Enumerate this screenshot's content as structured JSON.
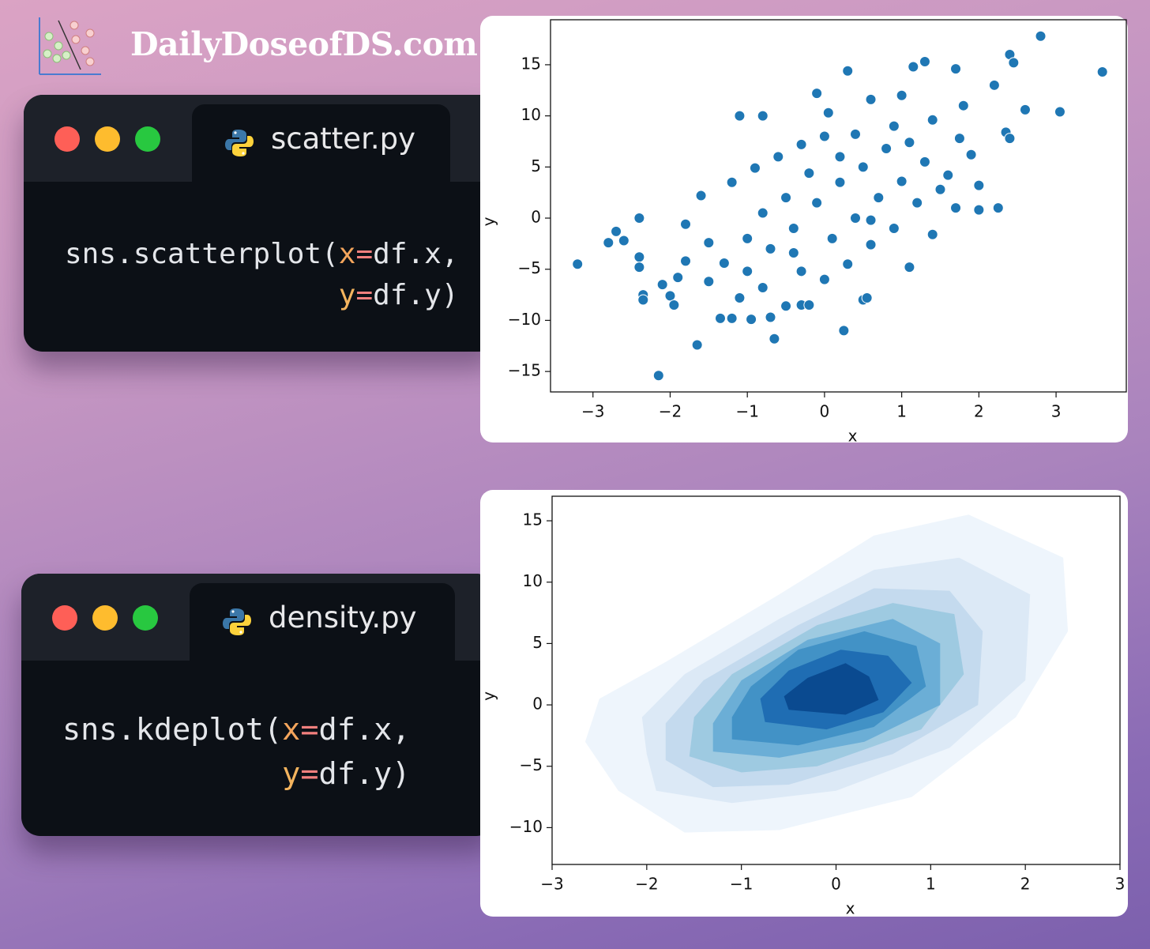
{
  "brand": "DailyDoseofDS.com",
  "windows": [
    {
      "filename": "scatter.py",
      "lines": [
        [
          {
            "text": "sns.scatterplot(",
            "color": "#e4e6ea"
          },
          {
            "text": "x",
            "color": "#f4a55c"
          },
          {
            "text": "=",
            "color": "#f3807e"
          },
          {
            "text": "df.x,",
            "color": "#e4e6ea"
          }
        ],
        [
          {
            "text": "y",
            "color": "#f4b45e"
          },
          {
            "text": "=",
            "color": "#f3807e"
          },
          {
            "text": "df.y)",
            "color": "#e4e6ea"
          }
        ]
      ]
    },
    {
      "filename": "density.py",
      "lines": [
        [
          {
            "text": "sns.kdeplot(",
            "color": "#e4e6ea"
          },
          {
            "text": "x",
            "color": "#f4a55c"
          },
          {
            "text": "=",
            "color": "#f3807e"
          },
          {
            "text": "df.x,",
            "color": "#e4e6ea"
          }
        ],
        [
          {
            "text": "y",
            "color": "#f4b45e"
          },
          {
            "text": "=",
            "color": "#f3807e"
          },
          {
            "text": "df.y)",
            "color": "#e4e6ea"
          }
        ]
      ]
    }
  ],
  "chart_data": [
    {
      "type": "scatter",
      "xlabel": "x",
      "ylabel": "y",
      "color": "#1f77b4",
      "xlim": [
        -3.55,
        3.91
      ],
      "ylim": [
        -17,
        19.4
      ],
      "xticks": [
        {
          "value": -3,
          "label": "−3"
        },
        {
          "value": -2,
          "label": "−2"
        },
        {
          "value": -1,
          "label": "−1"
        },
        0,
        1,
        2,
        3
      ],
      "yticks": [
        {
          "value": -15,
          "label": "−15"
        },
        {
          "value": -10,
          "label": "−10"
        },
        {
          "value": -5,
          "label": "−5"
        },
        0,
        5,
        10,
        15
      ],
      "x": [
        -3.2,
        -2.15,
        -1.65,
        -0.65,
        0.25,
        2.8,
        3.6,
        3.05,
        2.4,
        2.45,
        2.25,
        2.35,
        2.4,
        2.6,
        2.2,
        1.3,
        1.15,
        1.7,
        0.3,
        -0.1,
        -1.1,
        -0.8,
        -2.7,
        -2.8,
        -2.4,
        -2.6,
        -2.4,
        -2.4,
        -2.35,
        -2.35,
        -2.1,
        -2.0,
        -1.95,
        -1.35,
        -1.2,
        -0.95,
        -0.7,
        -0.5,
        -0.3,
        -0.2,
        0.5,
        0.55,
        1.1,
        1.5,
        1.9,
        2.0,
        1.75,
        1.8,
        1.4,
        1.0,
        0.6,
        0.9,
        0.4,
        0,
        -0.3,
        -0.6,
        -0.9,
        -1.2,
        -1.6,
        -1.8,
        -1.5,
        -1.3,
        -1.0,
        -0.7,
        -0.4,
        -0.1,
        0.2,
        0.5,
        0.8,
        1.1,
        1.3,
        1.6,
        1.2,
        0.9,
        0.6,
        0.3,
        0,
        -0.3,
        -0.8,
        -1.1,
        -1.5,
        -1.8,
        0.1,
        0.4,
        0.7,
        1.0,
        -0.2,
        -0.5,
        -0.8,
        -1.0,
        0.2,
        -0.4,
        0.6,
        1.4,
        1.7,
        2.0,
        -1.9,
        0.05
      ],
      "y": [
        -4.5,
        -15.4,
        -12.4,
        -11.8,
        -11,
        17.8,
        14.3,
        10.4,
        16,
        15.2,
        1,
        8.4,
        7.8,
        10.6,
        13,
        15.3,
        14.8,
        14.6,
        14.4,
        12.2,
        10,
        10,
        -1.3,
        -2.4,
        0,
        -2.2,
        -3.8,
        -4.8,
        -7.5,
        -8,
        -6.5,
        -7.6,
        -8.5,
        -9.8,
        -9.8,
        -9.9,
        -9.7,
        -8.6,
        -8.5,
        -8.5,
        -8,
        -7.8,
        -4.8,
        2.8,
        6.2,
        3.2,
        7.8,
        11,
        9.6,
        12,
        11.6,
        9,
        8.2,
        8,
        7.2,
        6,
        4.9,
        3.5,
        2.2,
        -0.6,
        -2.4,
        -4.4,
        -5.2,
        -3,
        -1,
        1.5,
        3.5,
        5,
        6.8,
        7.4,
        5.5,
        4.2,
        1.5,
        -1,
        -2.6,
        -4.5,
        -6,
        -5.2,
        -6.8,
        -7.8,
        -6.2,
        -4.2,
        -2,
        0,
        2,
        3.6,
        4.4,
        2,
        0.5,
        -2,
        6,
        -3.4,
        -0.2,
        -1.6,
        1,
        0.8,
        -5.8,
        10.3
      ]
    },
    {
      "type": "kde",
      "xlabel": "x",
      "ylabel": "y",
      "xlim": [
        -3,
        3
      ],
      "ylim": [
        -13,
        17
      ],
      "xticks": [
        {
          "value": -3,
          "label": "−3"
        },
        {
          "value": -2,
          "label": "−2"
        },
        {
          "value": -1,
          "label": "−1"
        },
        0,
        1,
        2,
        3
      ],
      "yticks": [
        {
          "value": -10,
          "label": "−10"
        },
        {
          "value": -5,
          "label": "−5"
        },
        0,
        5,
        10,
        15
      ],
      "levels": [
        {
          "color": "#eef5fc",
          "x": [
            -2.65,
            -2.3,
            -1.6,
            -0.6,
            0.8,
            1.9,
            2.45,
            2.4,
            1.4,
            0.4,
            -0.6,
            -1.8,
            -2.5
          ],
          "y": [
            -3,
            -7,
            -10.4,
            -10.2,
            -7.5,
            -1,
            6,
            12,
            15.5,
            13.8,
            9,
            3.5,
            0.5
          ]
        },
        {
          "color": "#dce9f6",
          "x": [
            -2.0,
            -1.9,
            -1.1,
            0,
            1.2,
            2,
            2.05,
            1.3,
            0.4,
            -0.6,
            -1.6,
            -2.05
          ],
          "y": [
            -4,
            -7,
            -8,
            -7,
            -3.5,
            2,
            9,
            12,
            11,
            7,
            2.5,
            -1
          ]
        },
        {
          "color": "#c4daee",
          "x": [
            -1.8,
            -1.3,
            -0.5,
            0.6,
            1.5,
            1.55,
            1.2,
            0.4,
            -0.4,
            -1.4,
            -1.8
          ],
          "y": [
            -4.5,
            -6.7,
            -6.5,
            -4,
            0,
            6,
            9.3,
            9.5,
            6.5,
            2,
            -1.5
          ]
        },
        {
          "color": "#9ecae1",
          "x": [
            -1.55,
            -1,
            -0.2,
            0.9,
            1.35,
            1.25,
            0.6,
            -0.2,
            -1.1,
            -1.5
          ],
          "y": [
            -4.2,
            -5.5,
            -5,
            -2,
            2.5,
            7.4,
            8.3,
            6.5,
            2.5,
            -1
          ]
        },
        {
          "color": "#6baed6",
          "x": [
            -1.3,
            -0.6,
            0.3,
            1.1,
            1.1,
            0.6,
            -0.3,
            -1.0,
            -1.3
          ],
          "y": [
            -3.8,
            -4.3,
            -3,
            0,
            5,
            7,
            5.3,
            2,
            -1.5
          ]
        },
        {
          "color": "#4292c6",
          "x": [
            -1.1,
            -0.4,
            0.4,
            0.95,
            0.85,
            0.3,
            -0.4,
            -0.9,
            -1.1
          ],
          "y": [
            -2.8,
            -3.3,
            -1.8,
            1.5,
            4.8,
            6,
            4.5,
            1.5,
            -1
          ]
        },
        {
          "color": "#1f6db3",
          "x": [
            -0.75,
            -0.1,
            0.5,
            0.8,
            0.55,
            0.05,
            -0.5,
            -0.8
          ],
          "y": [
            -1.4,
            -2,
            -0.6,
            1.8,
            4,
            4.5,
            2.8,
            0.5
          ]
        },
        {
          "color": "#0a4a90",
          "x": [
            -0.5,
            0.1,
            0.45,
            0.35,
            0.1,
            -0.3,
            -0.55
          ],
          "y": [
            -0.4,
            -0.8,
            0.4,
            2.3,
            3.4,
            2.2,
            0.7
          ]
        }
      ]
    }
  ]
}
